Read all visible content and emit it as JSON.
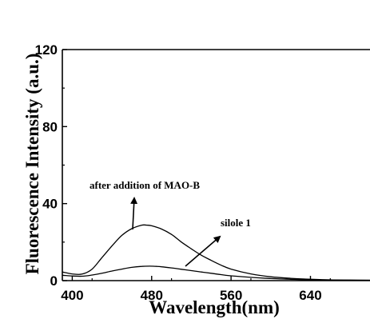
{
  "chart_data": {
    "type": "line",
    "title": "",
    "xlabel": "Wavelength(nm)",
    "ylabel": "Fluorescence Intensity (a.u.)",
    "xlim": [
      390,
      700
    ],
    "ylim": [
      0,
      120
    ],
    "xticks": [
      400,
      480,
      560,
      640
    ],
    "yticks": [
      0,
      40,
      80,
      120
    ],
    "grid": false,
    "series": [
      {
        "name": "after addition of MAO-B",
        "x": [
          390,
          400,
          410,
          420,
          430,
          440,
          450,
          460,
          470,
          475,
          480,
          490,
          500,
          510,
          520,
          530,
          540,
          550,
          560,
          580,
          600,
          620,
          640,
          660,
          680,
          700
        ],
        "y": [
          4.5,
          3.5,
          3.4,
          6,
          12,
          18,
          23.5,
          27,
          28.8,
          28.8,
          28.5,
          26.8,
          24,
          20,
          16.5,
          13.2,
          10.5,
          8,
          6,
          3.5,
          2,
          1.2,
          0.7,
          0.4,
          0.3,
          0.2
        ]
      },
      {
        "name": "silole 1",
        "x": [
          390,
          400,
          410,
          420,
          430,
          440,
          450,
          460,
          470,
          478,
          485,
          490,
          500,
          510,
          520,
          530,
          540,
          550,
          560,
          580,
          600,
          620,
          640,
          660,
          680,
          700
        ],
        "y": [
          2.8,
          2.4,
          2.3,
          2.9,
          3.8,
          5,
          6,
          6.9,
          7.4,
          7.5,
          7.4,
          7.2,
          6.6,
          5.9,
          5.2,
          4.5,
          3.8,
          3.1,
          2.5,
          1.7,
          1.1,
          0.7,
          0.4,
          0.3,
          0.2,
          0.2
        ]
      }
    ],
    "annotations": [
      {
        "text": "after addition of MAO-B",
        "target_series": 0
      },
      {
        "text": "silole 1",
        "target_series": 1
      }
    ]
  }
}
